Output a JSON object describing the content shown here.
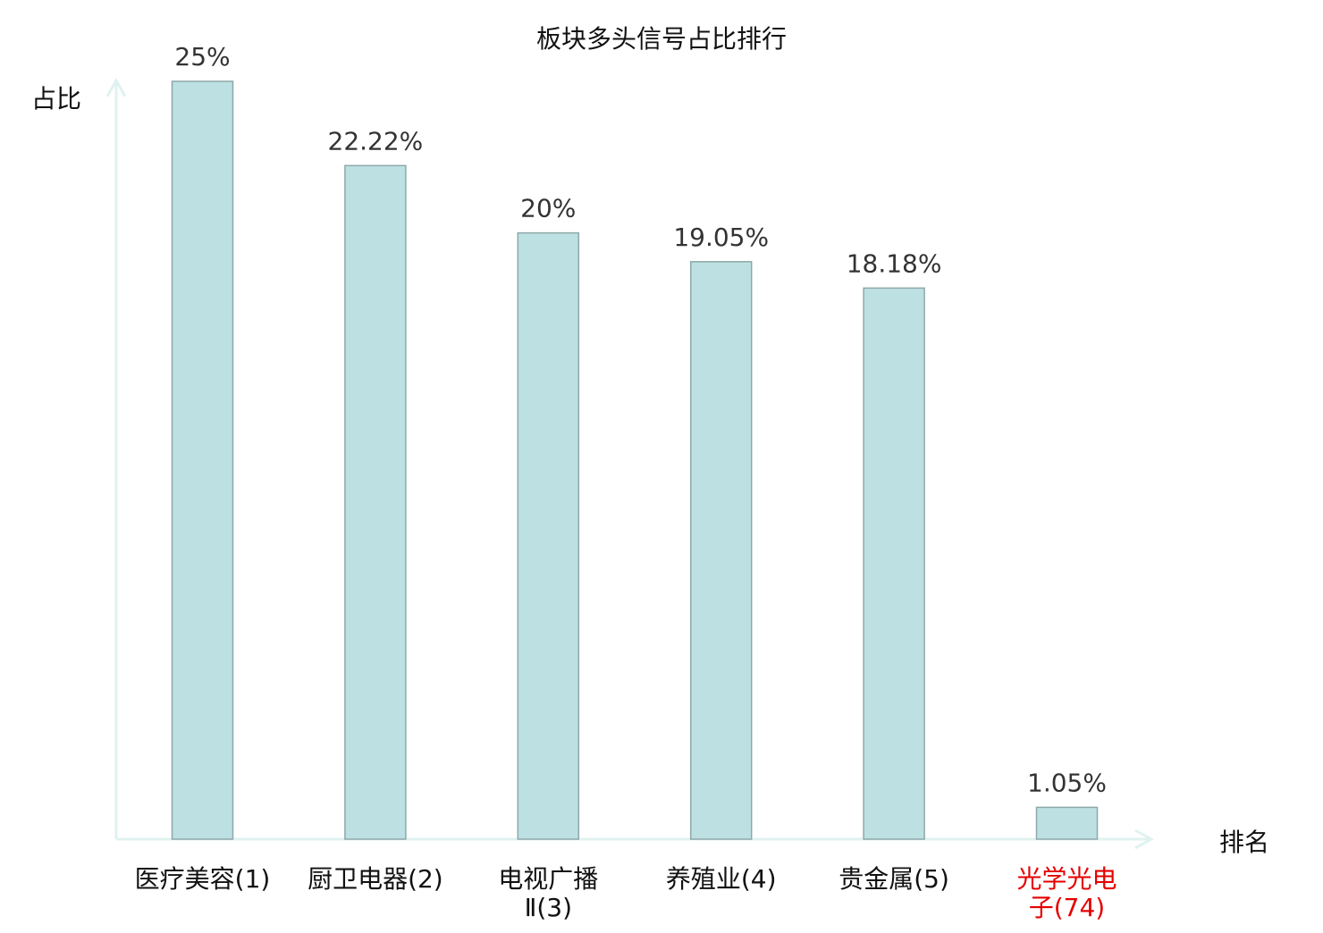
{
  "chart_data": {
    "type": "bar",
    "title": "板块多头信号占比排行",
    "ylabel": "占比",
    "xlabel": "排名",
    "categories": [
      [
        "医疗美容(1)"
      ],
      [
        "厨卫电器(2)"
      ],
      [
        "电视广播",
        "Ⅱ(3)"
      ],
      [
        "养殖业(4)"
      ],
      [
        "贵金属(5)"
      ],
      [
        "光学光电",
        "子(74)"
      ]
    ],
    "values": [
      25,
      22.22,
      20,
      19.05,
      18.18,
      1.05
    ],
    "data_labels": [
      "25%",
      "22.22%",
      "20%",
      "19.05%",
      "18.18%",
      "1.05%"
    ],
    "highlight_index": 5,
    "ylim": [
      0,
      25
    ],
    "grid": false,
    "colors": {
      "bar_fill": "#bde0e3",
      "bar_stroke": "#8fa8a8",
      "axis": "#e0f2f0",
      "text": "#333333",
      "highlight": "#e60000"
    }
  }
}
